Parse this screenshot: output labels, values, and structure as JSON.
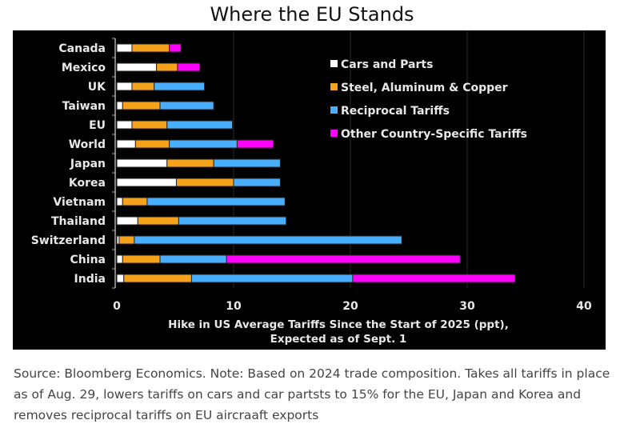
{
  "chart_data": {
    "type": "bar",
    "orientation": "horizontal",
    "stacked": true,
    "title": "Where the EU Stands",
    "xlabel": [
      "Hike in US Average Tariffs Since the Start of 2025 (ppt),",
      "Expected as of Sept. 1"
    ],
    "ylabel": "",
    "xlim": [
      0,
      40
    ],
    "xticks": [
      0,
      10,
      20,
      30,
      40
    ],
    "grid": "vertical",
    "legend_placement": "top-right",
    "categories": [
      "Canada",
      "Mexico",
      "UK",
      "Taiwan",
      "EU",
      "World",
      "Japan",
      "Korea",
      "Vietnam",
      "Thailand",
      "Switzerland",
      "China",
      "India"
    ],
    "series": [
      {
        "name": "Cars and Parts",
        "color": "#ffffff",
        "values": [
          1.3,
          3.4,
          1.3,
          0.5,
          1.3,
          1.6,
          4.3,
          5.1,
          0.5,
          1.8,
          0.2,
          0.5,
          0.6
        ]
      },
      {
        "name": "Steel, Aluminum & Copper",
        "color": "#f7a21b",
        "values": [
          3.2,
          1.8,
          1.9,
          3.2,
          3.0,
          2.9,
          4.0,
          4.9,
          2.1,
          3.5,
          1.3,
          3.2,
          5.8
        ]
      },
      {
        "name": "Reciprocal Tariffs",
        "color": "#4aaeff",
        "values": [
          0,
          0,
          4.3,
          4.6,
          5.6,
          5.8,
          5.7,
          4.0,
          11.8,
          9.2,
          22.9,
          5.7,
          13.8
        ]
      },
      {
        "name": "Other Country-Specific Tariffs",
        "color": "#ff00ff",
        "values": [
          1.0,
          1.9,
          0,
          0,
          0,
          3.1,
          0,
          0,
          0,
          0,
          0,
          20.0,
          13.9
        ]
      }
    ]
  },
  "caption": "Source: Bloomberg Economics. Note: Based on 2024 trade composition. Takes all tariffs in place as of Aug. 29, lowers tariffs on cars and car partsts to 15% for the EU, Japan and Korea and removes reciprocal tariffs on EU aircraaft exports"
}
